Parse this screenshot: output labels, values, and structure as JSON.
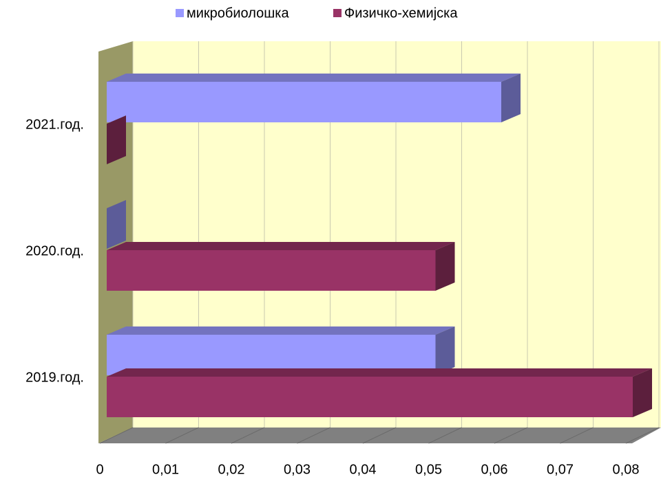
{
  "chart_data": {
    "type": "bar3d_horizontal",
    "categories": [
      "2019.год.",
      "2020.год.",
      "2021.год."
    ],
    "series": [
      {
        "name": "микробиолошка",
        "color": "#9999ff",
        "values": [
          0.05,
          0,
          0.06
        ]
      },
      {
        "name": "Физичко-хемијска",
        "color": "#993366",
        "values": [
          0.08,
          0.05,
          0
        ]
      }
    ],
    "xlim": [
      0,
      0.08
    ],
    "xticks": [
      0,
      {
        "value": 0.01,
        "label": "0,01"
      },
      {
        "value": 0.02,
        "label": "0,02"
      },
      {
        "value": 0.03,
        "label": "0,03"
      },
      {
        "value": 0.04,
        "label": "0,04"
      },
      {
        "value": 0.05,
        "label": "0,05"
      },
      {
        "value": 0.06,
        "label": "0,06"
      },
      {
        "value": 0.07,
        "label": "0,07"
      },
      {
        "value": 0.08,
        "label": "0,08"
      }
    ],
    "grid": true,
    "legend": "top"
  }
}
